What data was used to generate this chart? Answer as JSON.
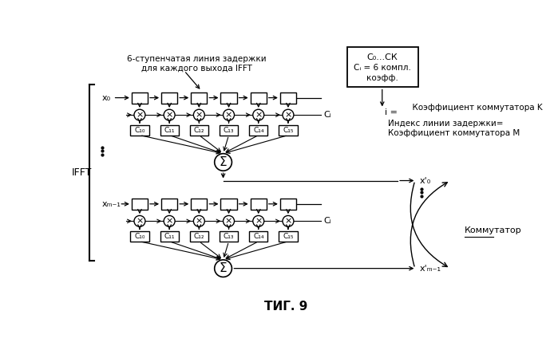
{
  "background_color": "#ffffff",
  "ifft_label": "IFFT",
  "x0_label": "x₀",
  "xm1_label": "xₘ₋₁",
  "top_label": "6-ступенчатая линия задержки\nдля каждого выхода IFFT",
  "box_title_line1": "C₀...CК",
  "box_title_line2": "Cᵢ = 6 компл.",
  "box_title_line3": "коэфф.",
  "ci_label": "Cᵢ",
  "i_eq_label": "i =",
  "coeff_k_label": "  Коэффициент коммутатора K",
  "delay_index_label": "Индекс линии задержки=\nКоэффициент коммутатора М",
  "commutator_label": "Коммутатор",
  "output0_label": "x'₀",
  "outputm1_label": "x'ₘ₋₁",
  "coeff_labels": [
    "C₁₀",
    "C₁₁",
    "C₁₂",
    "C₁₃",
    "C₁₄",
    "C₁₅"
  ],
  "fig_label": "ΤИГ. 9"
}
